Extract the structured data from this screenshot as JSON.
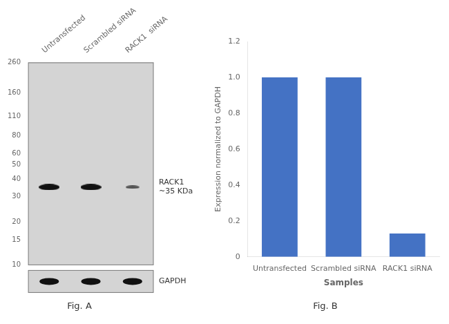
{
  "chart_data": [
    {
      "type": "blot",
      "title": "Fig. A",
      "categories": [
        "Untransfected",
        "Scrambled siRNA",
        "RACK1  siRNA"
      ],
      "values": [
        35,
        35,
        35
      ],
      "colors": [
        "#111111",
        "#111111",
        "#555555"
      ],
      "log": "y",
      "ylim": [
        10,
        260
      ],
      "yticks": [
        260,
        160,
        110,
        80,
        60,
        50,
        40,
        30,
        20,
        15,
        10
      ],
      "annotations": [
        "RACK1\n~35 KDa",
        "GAPDH"
      ],
      "grid": false
    },
    {
      "type": "bar",
      "title": "Fig. B",
      "categories": [
        "Untransfected",
        "Scrambled siRNA",
        "RACK1 siRNA"
      ],
      "values": [
        1.0,
        1.0,
        0.13
      ],
      "color": "#4472c4",
      "ylim": [
        0,
        1.2
      ],
      "yticks": [
        0,
        0.2,
        0.4,
        0.6,
        0.8,
        {
          "value": 1.0,
          "label": "1.0"
        },
        1.2
      ],
      "ylabel": "Expression normalized to GAPDH",
      "xlabel": "Samples",
      "grid": false
    }
  ]
}
